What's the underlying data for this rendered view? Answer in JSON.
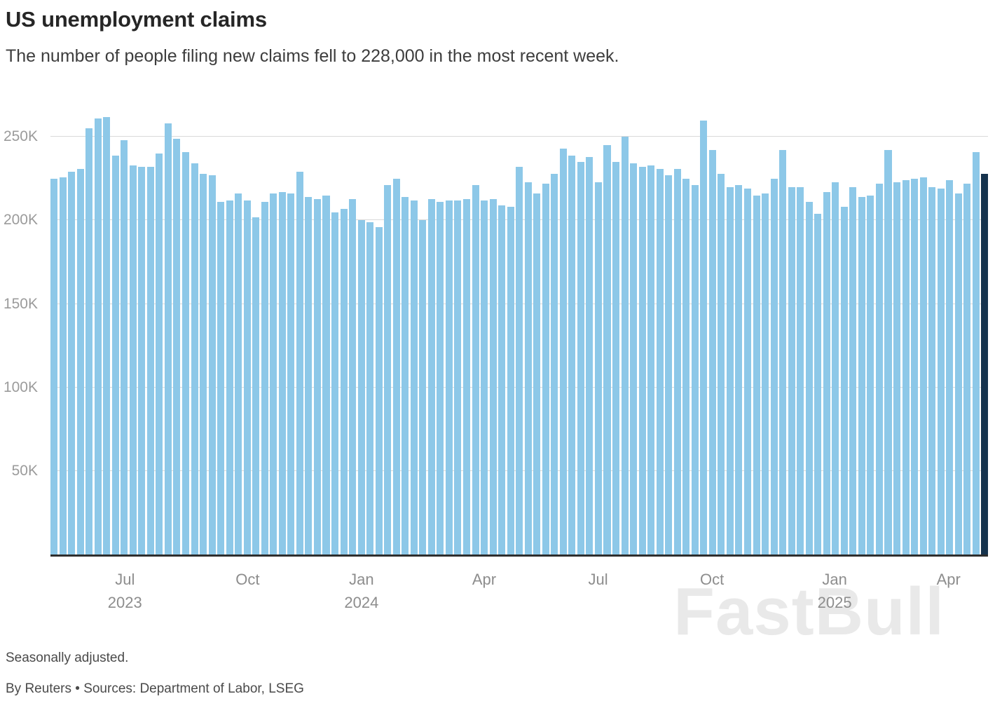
{
  "header": {
    "title": "US unemployment claims",
    "subtitle": "The number of people filing new claims fell to 228,000 in the most recent week."
  },
  "footer": {
    "note": "Seasonally adjusted.",
    "credit": "By Reuters • Sources: Department of Labor, LSEG"
  },
  "watermark": "FastBull",
  "colors": {
    "bar": "#8dc8e8",
    "bar_highlight": "#16334d",
    "grid": "#d9d9d9",
    "axis_label": "#9b9b9b",
    "baseline": "#2e2e2e"
  },
  "chart_data": {
    "type": "bar",
    "title": "US unemployment claims",
    "subtitle": "The number of people filing new claims fell to 228,000 in the most recent week.",
    "unit": "thousands of initial claims per week (K)",
    "ylim": [
      0,
      277
    ],
    "yticks": [
      50,
      100,
      150,
      200,
      250
    ],
    "ytick_labels": [
      "50K",
      "100K",
      "150K",
      "200K",
      "250K"
    ],
    "grid": true,
    "legend": "none",
    "highlight_last": true,
    "last_value_label": "228,000",
    "xticks": [
      {
        "index": 8,
        "label": "Jul",
        "year": "2023"
      },
      {
        "index": 22,
        "label": "Oct",
        "year": ""
      },
      {
        "index": 35,
        "label": "Jan",
        "year": "2024"
      },
      {
        "index": 49,
        "label": "Apr",
        "year": ""
      },
      {
        "index": 62,
        "label": "Jul",
        "year": ""
      },
      {
        "index": 75,
        "label": "Oct",
        "year": ""
      },
      {
        "index": 89,
        "label": "Jan",
        "year": "2025"
      },
      {
        "index": 102,
        "label": "Apr",
        "year": ""
      }
    ],
    "values": [
      225,
      226,
      229,
      231,
      255,
      261,
      262,
      239,
      248,
      233,
      232,
      232,
      240,
      258,
      249,
      241,
      234,
      228,
      227,
      211,
      212,
      216,
      212,
      202,
      211,
      216,
      217,
      216,
      229,
      214,
      213,
      215,
      205,
      207,
      213,
      200,
      199,
      196,
      221,
      225,
      214,
      212,
      200,
      213,
      211,
      212,
      212,
      213,
      221,
      212,
      213,
      209,
      208,
      232,
      223,
      216,
      222,
      228,
      243,
      239,
      235,
      238,
      223,
      245,
      235,
      250,
      234,
      232,
      233,
      231,
      227,
      231,
      225,
      221,
      260,
      242,
      228,
      220,
      221,
      219,
      215,
      216,
      225,
      242,
      220,
      220,
      211,
      204,
      217,
      223,
      208,
      220,
      214,
      215,
      222,
      242,
      223,
      224,
      225,
      226,
      220,
      219,
      224,
      216,
      222,
      241,
      228
    ]
  }
}
